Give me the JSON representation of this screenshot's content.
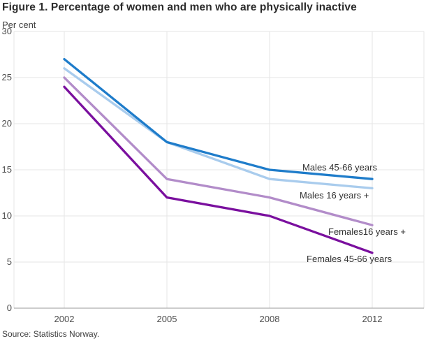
{
  "figure": {
    "title": "Figure 1. Percentage of women and men who are physically inactive",
    "unit_label": "Per cent",
    "source": "Source: Statistics Norway."
  },
  "chart_data": {
    "type": "line",
    "title": "Figure 1. Percentage of women and men who are physically inactive",
    "xlabel": "",
    "ylabel": "Per cent",
    "categories": [
      "2002",
      "2005",
      "2008",
      "2012"
    ],
    "series": [
      {
        "name": "Males 45-66 years",
        "values": [
          27,
          18,
          15,
          14
        ],
        "color": "#1e7cca"
      },
      {
        "name": "Males 16 years +",
        "values": [
          26,
          18,
          14,
          13
        ],
        "color": "#a9cced"
      },
      {
        "name": "Females16 years +",
        "values": [
          25,
          14,
          12,
          9
        ],
        "color": "#b28cc9"
      },
      {
        "name": "Females 45-66 years",
        "values": [
          24,
          12,
          10,
          6
        ],
        "color": "#7a0f9e"
      }
    ],
    "ylim": [
      0,
      30
    ],
    "yticks": [
      0,
      5,
      10,
      15,
      20,
      25,
      30
    ],
    "grid": true,
    "legend_position": "inline-labels-right-of-lines",
    "gridline_color": "#e6e6e6",
    "axis_line_color": "#999999"
  }
}
